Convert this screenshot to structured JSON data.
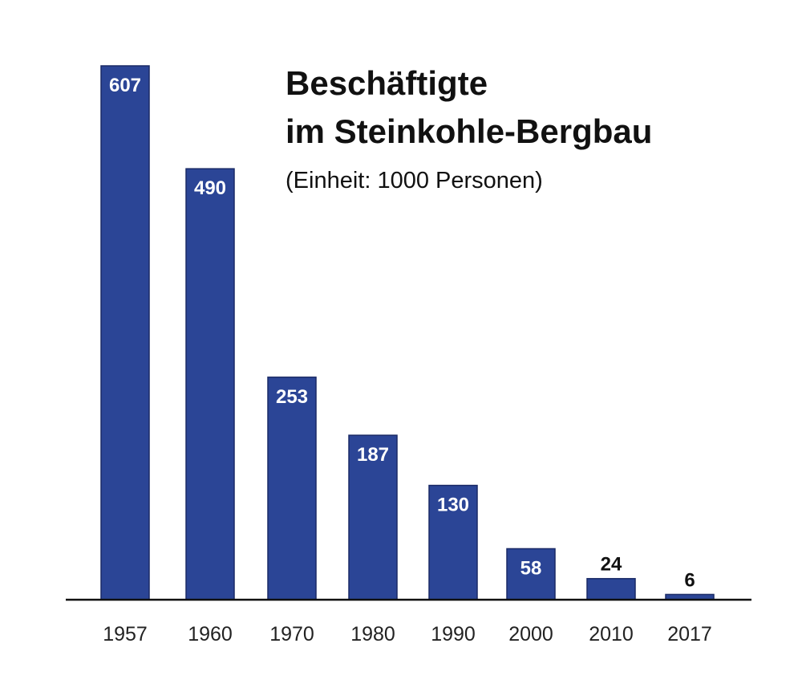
{
  "chart_data": {
    "type": "bar",
    "title_lines": [
      "Beschäftigte",
      "im Steinkohle-Bergbau"
    ],
    "subtitle": "(Einheit: 1000 Personen)",
    "categories": [
      "1957",
      "1960",
      "1970",
      "1980",
      "1990",
      "2000",
      "2010",
      "2017"
    ],
    "values": [
      607,
      490,
      253,
      187,
      130,
      58,
      24,
      6
    ],
    "value_labels": [
      "607",
      "490",
      "253",
      "187",
      "130",
      "58",
      "24",
      "6"
    ],
    "ylim": [
      0,
      607
    ],
    "grid": false,
    "legend": "none",
    "colors": {
      "bar": "#2b4596",
      "bar_edge": "#1a2a66",
      "axis": "#111111",
      "label_inside": "#ffffff",
      "label_outside": "#111111"
    }
  }
}
